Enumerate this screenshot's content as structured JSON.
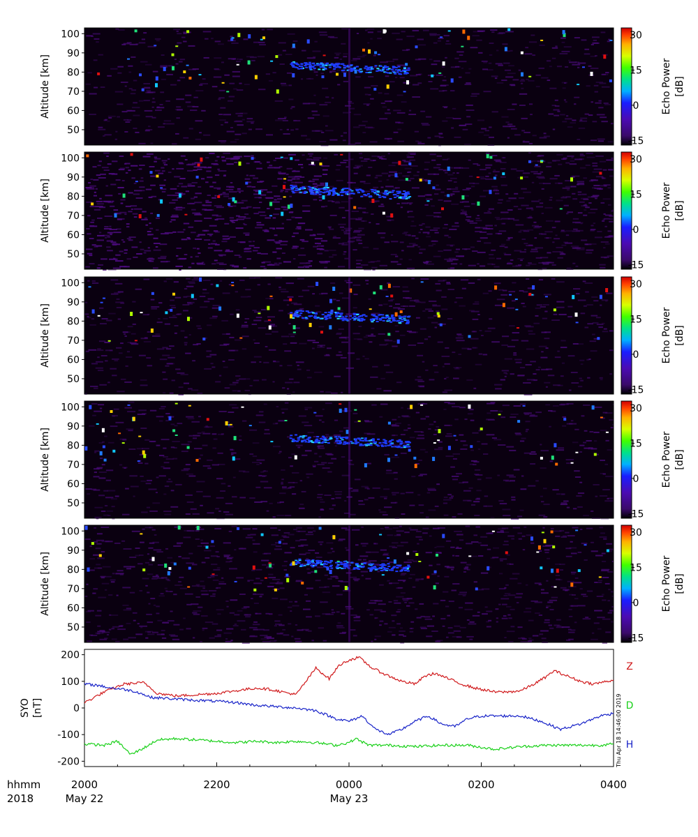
{
  "timestamp_text": "Thu Apr 18 14:46:00 2019",
  "colors": {
    "panel_bg": "#0a0010",
    "noise": "#4a0b7a",
    "Z": "#d0191b",
    "D": "#18d018",
    "H": "#1722c8"
  },
  "chart_data": [
    {
      "type": "heatmap",
      "title": "",
      "panels": 5,
      "ylabel": "Altitude [km]",
      "ylim": [
        42,
        103
      ],
      "yticks": [
        50,
        60,
        70,
        80,
        90,
        100
      ],
      "colorbar": {
        "label": "Echo Power",
        "unit": "[dB]",
        "range": [
          -17,
          33
        ],
        "ticks": [
          30,
          15,
          0,
          -15
        ],
        "colormap": "rainbow"
      },
      "echo_layer_note": "Mesospheric echo layer near 78-84 km, strongest around 0000 UT May 23",
      "layer": {
        "center_time_hours": [
          23.1,
          0.1
        ],
        "altitude_km": [
          84,
          80,
          82
        ]
      }
    },
    {
      "type": "line",
      "title": "",
      "ylabel_line1": "SYO",
      "ylabel_line2": "[nT]",
      "ylim": [
        -220,
        220
      ],
      "yticks": [
        200,
        100,
        0,
        -100,
        -200
      ],
      "xlabel_prefix": [
        "hhmm",
        "2018"
      ],
      "x_range_hours": [
        20,
        28
      ],
      "xticks": [
        {
          "value": 20,
          "label": "2000",
          "date": "May 22"
        },
        {
          "value": 22,
          "label": "2200",
          "date": ""
        },
        {
          "value": 24,
          "label": "0000",
          "date": "May 23"
        },
        {
          "value": 26,
          "label": "0200",
          "date": ""
        },
        {
          "value": 28,
          "label": "0400",
          "date": ""
        }
      ],
      "series": [
        {
          "name": "Z",
          "color": "#d0191b",
          "x": [
            20.0,
            20.3,
            20.6,
            20.9,
            21.1,
            21.4,
            21.7,
            22.0,
            22.3,
            22.6,
            22.8,
            23.0,
            23.2,
            23.35,
            23.5,
            23.7,
            23.85,
            24.0,
            24.15,
            24.35,
            24.6,
            24.8,
            25.0,
            25.15,
            25.3,
            25.5,
            25.7,
            25.9,
            26.2,
            26.4,
            26.6,
            26.8,
            27.0,
            27.1,
            27.3,
            27.5,
            27.7,
            27.9,
            28.0
          ],
          "y": [
            20,
            60,
            90,
            95,
            55,
            45,
            50,
            55,
            65,
            75,
            70,
            60,
            50,
            100,
            150,
            110,
            160,
            180,
            190,
            150,
            120,
            100,
            90,
            120,
            130,
            110,
            90,
            75,
            60,
            60,
            65,
            90,
            120,
            140,
            120,
            100,
            90,
            100,
            105
          ]
        },
        {
          "name": "D",
          "color": "#18d018",
          "x": [
            20.0,
            20.3,
            20.5,
            20.7,
            20.9,
            21.1,
            21.4,
            21.7,
            22.0,
            22.3,
            22.6,
            22.9,
            23.2,
            23.5,
            23.8,
            24.0,
            24.1,
            24.3,
            24.6,
            25.0,
            25.4,
            25.8,
            26.2,
            26.6,
            27.0,
            27.4,
            27.8,
            28.0
          ],
          "y": [
            -135,
            -140,
            -125,
            -175,
            -150,
            -120,
            -115,
            -120,
            -125,
            -130,
            -125,
            -130,
            -125,
            -130,
            -140,
            -130,
            -115,
            -140,
            -140,
            -145,
            -140,
            -140,
            -155,
            -145,
            -140,
            -140,
            -140,
            -135
          ]
        },
        {
          "name": "H",
          "color": "#1722c8",
          "x": [
            20.0,
            20.2,
            20.4,
            20.6,
            20.8,
            21.0,
            21.3,
            21.6,
            22.0,
            22.3,
            22.6,
            22.9,
            23.2,
            23.5,
            23.7,
            23.8,
            24.0,
            24.2,
            24.4,
            24.6,
            24.8,
            25.0,
            25.2,
            25.4,
            25.6,
            25.8,
            26.0,
            26.3,
            26.6,
            26.9,
            27.2,
            27.5,
            27.8,
            28.0
          ],
          "y": [
            90,
            85,
            75,
            70,
            60,
            40,
            35,
            30,
            25,
            20,
            10,
            5,
            0,
            -10,
            -30,
            -40,
            -50,
            -30,
            -80,
            -100,
            -80,
            -50,
            -30,
            -60,
            -70,
            -40,
            -30,
            -30,
            -30,
            -50,
            -80,
            -60,
            -30,
            -20
          ]
        }
      ]
    }
  ]
}
